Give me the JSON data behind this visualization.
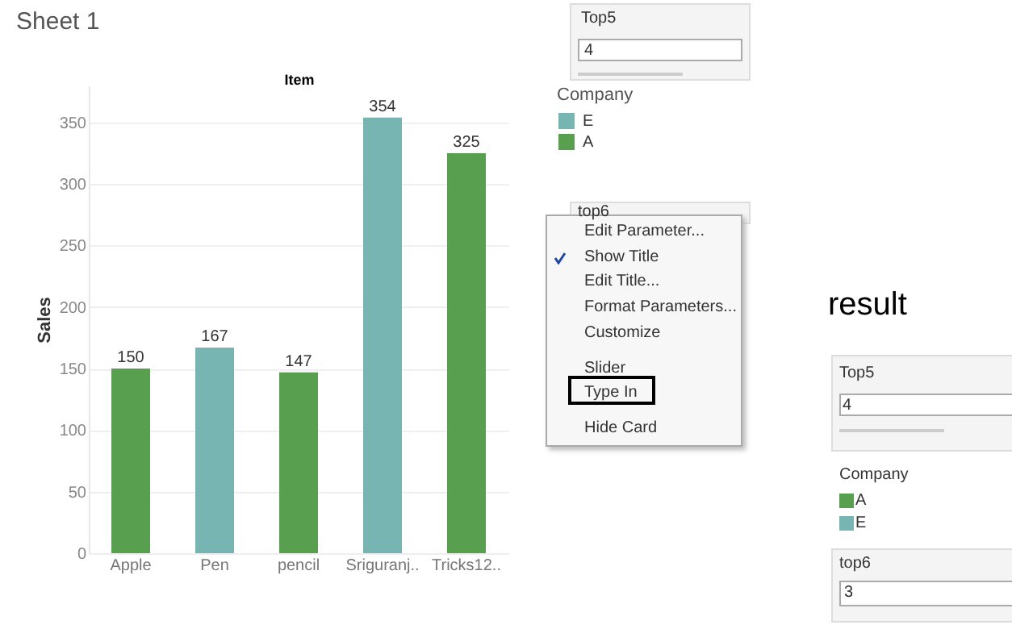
{
  "chart_data": {
    "type": "bar",
    "title": "Sheet 1",
    "xlabel": "Item",
    "ylabel": "Sales",
    "categories": [
      "Apple",
      "Pen",
      "pencil",
      "Sriguranj..",
      "Tricks12.."
    ],
    "series": [
      {
        "name": "E",
        "color": "#76b5b1",
        "values": [
          null,
          167,
          null,
          354,
          null
        ]
      },
      {
        "name": "A",
        "color": "#58a04f",
        "values": [
          150,
          null,
          147,
          null,
          325
        ]
      }
    ],
    "ylim": [
      0,
      380
    ],
    "yticks": [
      0,
      50,
      100,
      150,
      200,
      250,
      300,
      350
    ],
    "grid": "y",
    "legend": "right",
    "legend_title": "Company",
    "data_labels": true,
    "annotations": [
      "Top5",
      "4",
      "top6",
      "Edit Parameter...",
      "Show Title",
      "Edit Title...",
      "Format Parameters...",
      "Customize",
      "Slider",
      "Type In",
      "Hide Card",
      "result",
      "Top5",
      "4",
      "Company",
      "A",
      "E",
      "top6",
      "3"
    ]
  }
}
